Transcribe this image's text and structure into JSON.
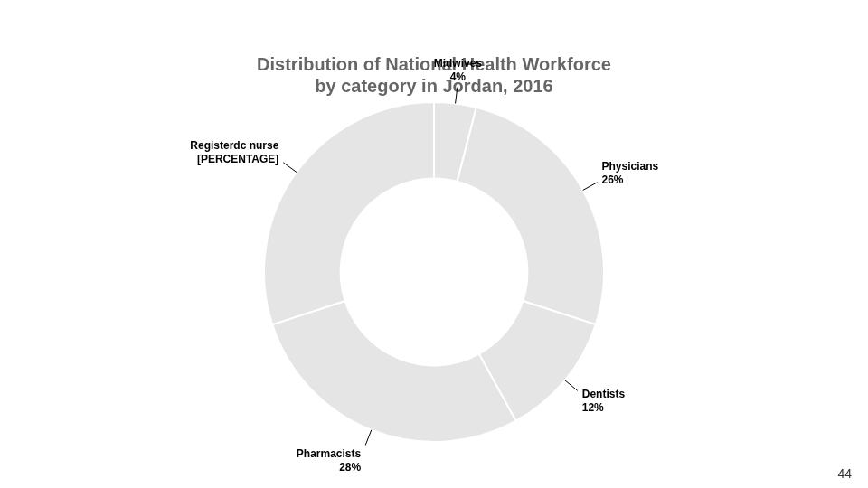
{
  "chart_data": {
    "type": "doughnut",
    "title": [
      "Distribution of National Health Workforce",
      "by category in Jordan, 2016"
    ],
    "categories": [
      "Midwives",
      "Physicians",
      "Dentists",
      "Pharmacists",
      "Registerdc nurse"
    ],
    "values": [
      4,
      26,
      12,
      28,
      30
    ],
    "value_labels": [
      "4%",
      "26%",
      "12%",
      "28%",
      "[PERCENTAGE]"
    ],
    "data_labels": true,
    "annotations": [
      "44"
    ]
  }
}
